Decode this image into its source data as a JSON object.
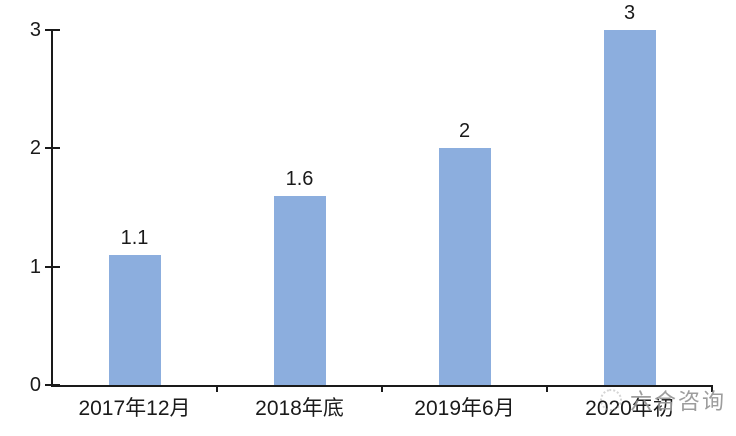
{
  "chart_data": {
    "type": "bar",
    "categories": [
      "2017年12月",
      "2018年底",
      "2019年6月",
      "2020年初"
    ],
    "values": [
      1.1,
      1.6,
      2,
      3
    ],
    "data_labels": [
      "1.1",
      "1.6",
      "2",
      "3"
    ],
    "title": "",
    "xlabel": "",
    "ylabel": "",
    "ylim": [
      0,
      3
    ],
    "yticks": [
      "0",
      "1",
      "2",
      "3"
    ],
    "grid": false,
    "legend": "none",
    "bar_color": "#8CAEDE",
    "axis_color": "#1a1a1a"
  },
  "watermark": {
    "text": "六合咨询",
    "logo_icon": "seal-icon",
    "color": "#8c8c8c"
  }
}
